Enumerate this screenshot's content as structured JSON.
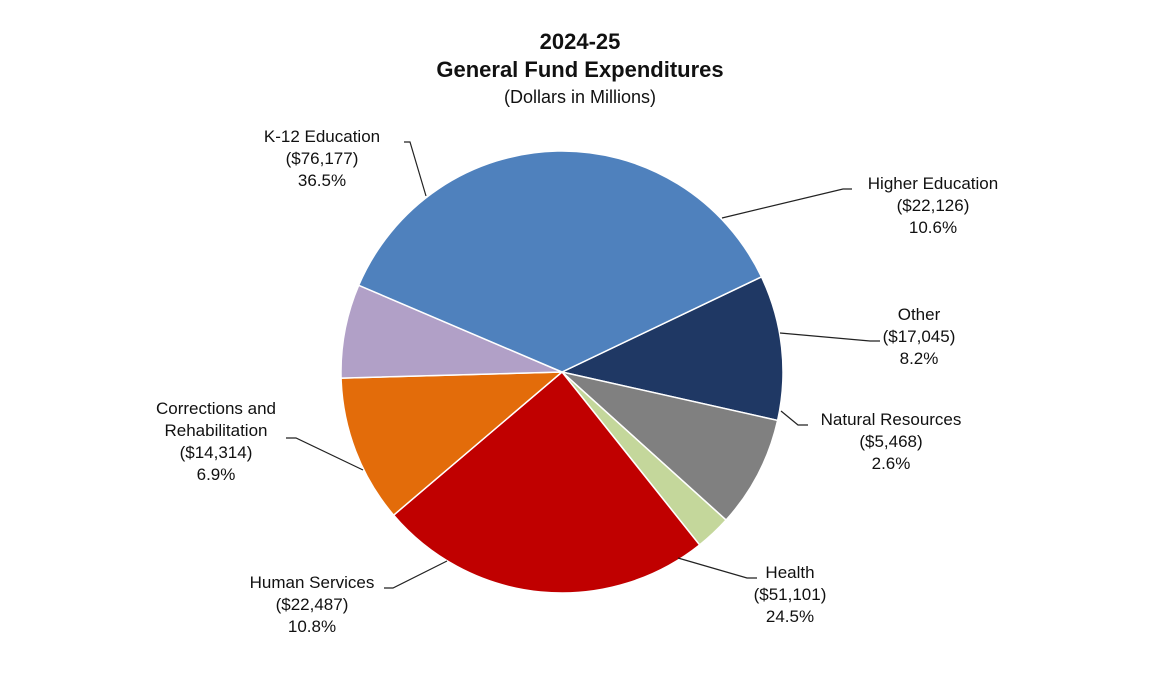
{
  "chart_data": {
    "type": "pie",
    "title_line1": "2024-25",
    "title_line2": "General Fund Expenditures",
    "subtitle": "(Dollars in Millions)",
    "slices": [
      {
        "name": "K-12 Education",
        "amount": "($76,177)",
        "value": 76177,
        "percent": "36.5%",
        "color": "#4f81bd"
      },
      {
        "name": "Higher Education",
        "amount": "($22,126)",
        "value": 22126,
        "percent": "10.6%",
        "color": "#1f3864"
      },
      {
        "name": "Other",
        "amount": "($17,045)",
        "value": 17045,
        "percent": "8.2%",
        "color": "#808080"
      },
      {
        "name": "Natural Resources",
        "amount": "($5,468)",
        "value": 5468,
        "percent": "2.6%",
        "color": "#c4d79b"
      },
      {
        "name": "Health",
        "amount": "($51,101)",
        "value": 51101,
        "percent": "24.5%",
        "color": "#c00000"
      },
      {
        "name": "Human Services",
        "amount": "($22,487)",
        "value": 22487,
        "percent": "10.8%",
        "color": "#e36c0a"
      },
      {
        "name": "Corrections and Rehabilitation",
        "name_lines": [
          "Corrections and",
          "Rehabilitation"
        ],
        "amount": "($14,314)",
        "value": 14314,
        "percent": "6.9%",
        "color": "#b1a0c7"
      }
    ]
  }
}
